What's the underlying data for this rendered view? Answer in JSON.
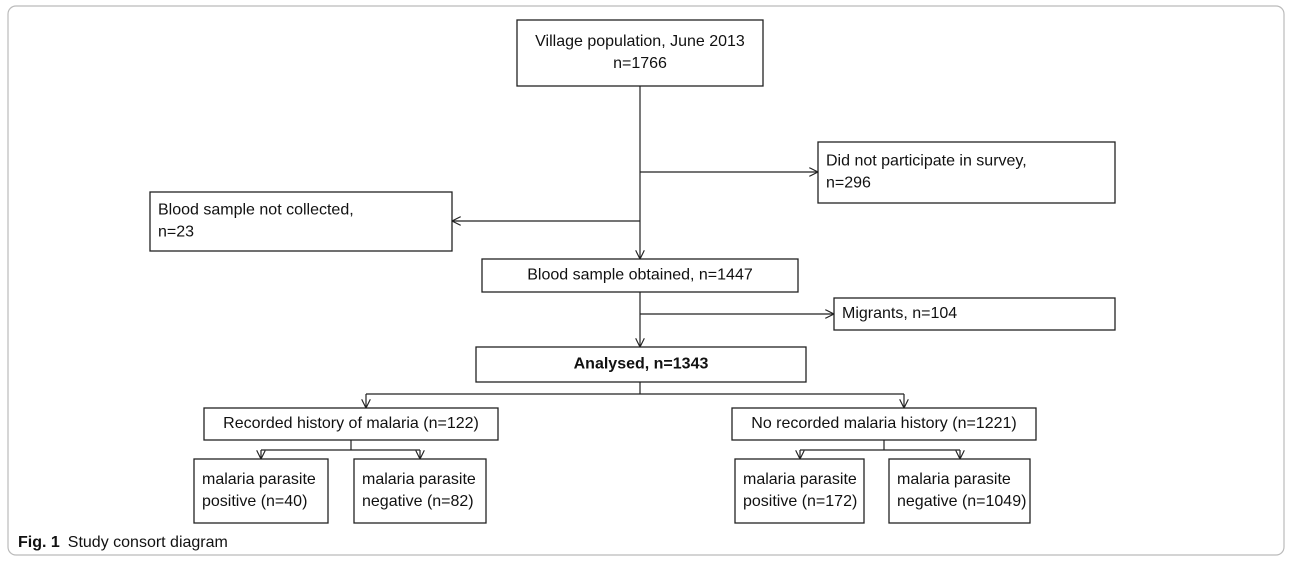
{
  "nodes": [
    {
      "lines": [
        "Village population, June 2013",
        "n=1766"
      ]
    },
    {
      "lines": [
        "Did not participate in survey,",
        "n=296"
      ]
    },
    {
      "lines": [
        "Blood sample not collected,",
        "n=23"
      ]
    },
    {
      "lines": [
        "Blood sample obtained, n=1447"
      ]
    },
    {
      "lines": [
        "Migrants, n=104"
      ]
    },
    {
      "lines": [
        "Analysed, n=1343"
      ]
    },
    {
      "lines": [
        "Recorded history of malaria (n=122)"
      ]
    },
    {
      "lines": [
        "No recorded malaria history (n=1221)"
      ]
    },
    {
      "lines": [
        "malaria parasite",
        "positive (n=40)"
      ]
    },
    {
      "lines": [
        "malaria parasite",
        "negative (n=82)"
      ]
    },
    {
      "lines": [
        "malaria parasite",
        "positive (n=172)"
      ]
    },
    {
      "lines": [
        "malaria parasite",
        "negative (n=1049)"
      ]
    }
  ],
  "caption": {
    "label": "Fig. 1",
    "text": "Study consort diagram"
  }
}
